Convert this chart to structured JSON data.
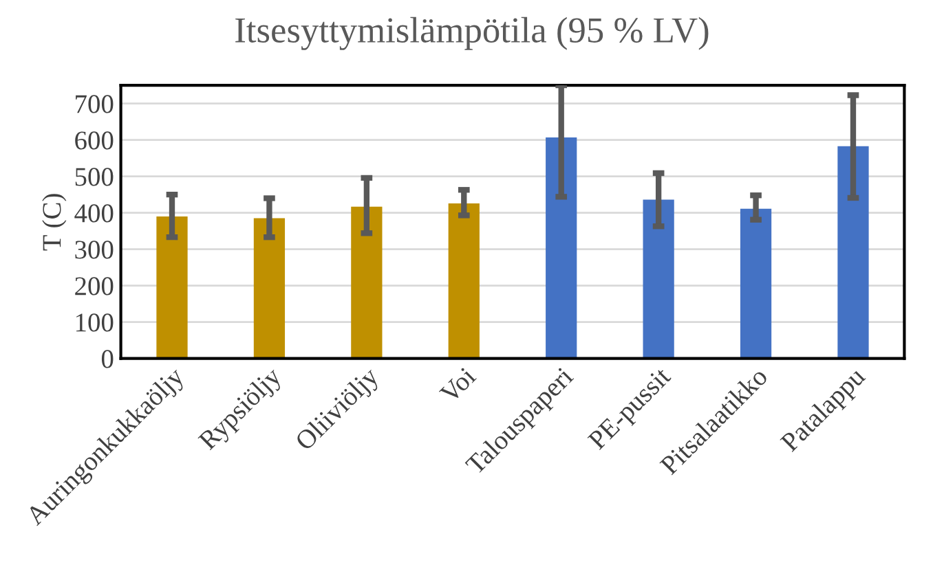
{
  "chart_data": {
    "type": "bar",
    "title": "Itsesyttymislämpötila (95 % LV)",
    "ylabel": "T (C)",
    "categories": [
      "Auringonkukkaöljy",
      "Rypsiöljy",
      "Oliiviöljy",
      "Voi",
      "Talouspaperi",
      "PE-pussit",
      "Pitsalaatikko",
      "Patalappu"
    ],
    "values": [
      390,
      385,
      417,
      426,
      607,
      436,
      411,
      583
    ],
    "colors": [
      "#bf9000",
      "#bf9000",
      "#bf9000",
      "#bf9000",
      "#4472c4",
      "#4472c4",
      "#4472c4",
      "#4472c4"
    ],
    "errors": [
      [
        333,
        450
      ],
      [
        333,
        440
      ],
      [
        344,
        496
      ],
      [
        393,
        463
      ],
      [
        444,
        750
      ],
      [
        363,
        509
      ],
      [
        381,
        448
      ],
      [
        441,
        723
      ]
    ],
    "ylim": [
      0,
      750
    ],
    "yticks": [
      0,
      100,
      200,
      300,
      400,
      500,
      600,
      700
    ],
    "grid": "y",
    "legend": false
  }
}
